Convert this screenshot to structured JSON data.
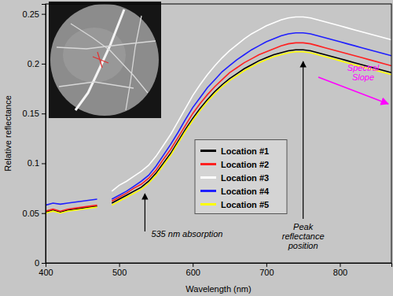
{
  "chart_data": {
    "type": "line",
    "x_label": "Wavelength (nm)",
    "y_label": "Relative reflectance",
    "x": [
      400,
      410,
      420,
      430,
      440,
      450,
      460,
      470,
      480,
      490,
      500,
      510,
      520,
      530,
      540,
      550,
      560,
      570,
      580,
      590,
      600,
      610,
      620,
      630,
      640,
      650,
      660,
      670,
      680,
      690,
      700,
      710,
      720,
      730,
      740,
      750,
      760,
      770,
      780,
      790,
      800,
      810,
      820,
      830,
      840,
      850,
      860,
      870
    ],
    "series": [
      {
        "name": "Location #1",
        "color": "#000000",
        "values": [
          0.051,
          0.053,
          0.051,
          0.053,
          0.054,
          0.055,
          0.056,
          0.057,
          null,
          0.06,
          0.064,
          0.068,
          0.072,
          0.076,
          0.082,
          0.09,
          0.1,
          0.11,
          0.122,
          0.134,
          0.145,
          0.155,
          0.164,
          0.172,
          0.179,
          0.185,
          0.19,
          0.195,
          0.199,
          0.203,
          0.206,
          0.209,
          0.211,
          0.213,
          0.214,
          0.214,
          0.213,
          0.211,
          0.209,
          0.207,
          0.205,
          0.203,
          0.201,
          0.199,
          0.197,
          0.195,
          0.193,
          0.191
        ]
      },
      {
        "name": "Location #2",
        "color": "#ff2020",
        "values": [
          0.052,
          0.054,
          0.052,
          0.054,
          0.055,
          0.056,
          0.057,
          0.058,
          null,
          0.062,
          0.066,
          0.07,
          0.075,
          0.079,
          0.085,
          0.093,
          0.104,
          0.114,
          0.126,
          0.138,
          0.15,
          0.16,
          0.169,
          0.177,
          0.184,
          0.191,
          0.196,
          0.201,
          0.205,
          0.209,
          0.212,
          0.215,
          0.218,
          0.22,
          0.221,
          0.221,
          0.22,
          0.218,
          0.216,
          0.214,
          0.212,
          0.21,
          0.208,
          0.206,
          0.204,
          0.202,
          0.2,
          0.198
        ]
      },
      {
        "name": "Location #3",
        "color": "#ffffff",
        "values": [
          null,
          null,
          null,
          null,
          null,
          null,
          null,
          null,
          null,
          0.072,
          0.078,
          0.082,
          0.087,
          0.092,
          0.098,
          0.107,
          0.118,
          0.129,
          0.142,
          0.155,
          0.168,
          0.179,
          0.189,
          0.198,
          0.206,
          0.213,
          0.219,
          0.225,
          0.23,
          0.234,
          0.238,
          0.241,
          0.244,
          0.246,
          0.247,
          0.247,
          0.246,
          0.244,
          0.242,
          0.24,
          0.238,
          0.236,
          0.234,
          0.232,
          0.23,
          0.228,
          0.226,
          0.224
        ]
      },
      {
        "name": "Location #4",
        "color": "#1f1fff",
        "values": [
          0.058,
          0.06,
          0.059,
          0.06,
          0.061,
          0.062,
          0.063,
          0.064,
          null,
          0.064,
          0.068,
          0.072,
          0.077,
          0.082,
          0.088,
          0.097,
          0.108,
          0.119,
          0.131,
          0.144,
          0.156,
          0.166,
          0.176,
          0.184,
          0.192,
          0.198,
          0.204,
          0.209,
          0.214,
          0.218,
          0.222,
          0.225,
          0.228,
          0.23,
          0.231,
          0.231,
          0.23,
          0.228,
          0.226,
          0.224,
          0.222,
          0.22,
          0.218,
          0.216,
          0.214,
          0.212,
          0.21,
          0.208
        ]
      },
      {
        "name": "Location #5",
        "color": "#ffff00",
        "values": [
          0.05,
          0.052,
          0.05,
          0.052,
          0.053,
          0.054,
          0.055,
          0.056,
          null,
          0.058,
          0.062,
          0.066,
          0.07,
          0.074,
          0.08,
          0.088,
          0.098,
          0.108,
          0.12,
          0.132,
          0.143,
          0.153,
          0.162,
          0.17,
          0.177,
          0.183,
          0.188,
          0.193,
          0.197,
          0.201,
          0.204,
          0.207,
          0.209,
          0.211,
          0.212,
          0.212,
          0.211,
          0.209,
          0.207,
          0.205,
          0.203,
          0.201,
          0.199,
          0.197,
          0.195,
          0.193,
          0.191,
          0.189
        ]
      }
    ],
    "xlim": [
      400,
      870
    ],
    "ylim": [
      0,
      0.26
    ],
    "xticks": [
      400,
      500,
      600,
      700,
      800
    ],
    "yticks": [
      0,
      0.05,
      0.1,
      0.15,
      0.2,
      0.25
    ],
    "grid": false,
    "legend": "center",
    "annotations": [
      {
        "lines": [
          "535 nm absorption"
        ],
        "x": 535
      },
      {
        "lines": [
          "Peak",
          "reflectance",
          "position"
        ],
        "x": 750
      },
      {
        "lines": [
          "Spectral",
          "Slope"
        ],
        "color": "#ff00ff"
      }
    ]
  }
}
